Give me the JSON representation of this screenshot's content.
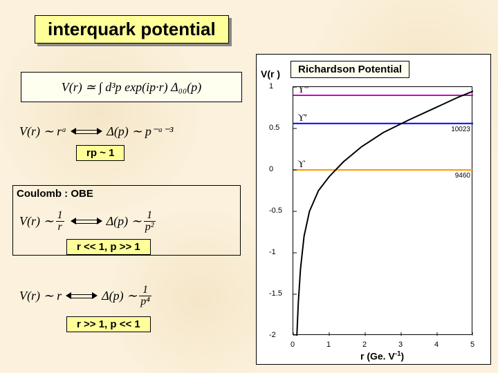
{
  "title": "interquark potential",
  "richardson_label": "Richardson Potential",
  "coulomb_label": "Coulomb : OBE",
  "formulas": {
    "integral": "V(r)  ≃  ∫ d³p exp(ip·r) Δ₀₀(p)",
    "scale": {
      "lhs": "V(r)  ∼  rᵃ",
      "rhs": "Δ(p)  ∼  p⁻ᵃ⁻³",
      "cond": "rp ~ 1"
    },
    "coulomb": {
      "lhs": "V(r)  ∼",
      "lfrac_n": "1",
      "lfrac_d": "r",
      "rhs": "Δ(p)  ∼",
      "rfrac_n": "1",
      "rfrac_d": "p²",
      "cond": "r << 1, p >> 1"
    },
    "linear": {
      "lhs": "V(r)  ∼  r",
      "rhs": "Δ(p)  ∼",
      "rfrac_n": "1",
      "rfrac_d": "p⁴",
      "cond": "r >> 1, p << 1"
    }
  },
  "cond_box_bg": "#ffff99",
  "chart": {
    "type": "line",
    "xlabel": "r (Ge. V⁻¹)",
    "ylabel": "V(r )",
    "xlim": [
      0,
      5
    ],
    "ylim": [
      -2,
      1
    ],
    "xticks": [
      0,
      1,
      2,
      3,
      4,
      5
    ],
    "yticks": [
      -2,
      -1.5,
      -1,
      -0.5,
      0,
      0.5,
      1
    ],
    "background_color": "#ffffff",
    "curve_color": "#000000",
    "curve_width": 2,
    "curve_points": [
      [
        0.1,
        -2.0
      ],
      [
        0.14,
        -1.6
      ],
      [
        0.2,
        -1.2
      ],
      [
        0.3,
        -0.8
      ],
      [
        0.45,
        -0.5
      ],
      [
        0.7,
        -0.25
      ],
      [
        1.0,
        -0.08
      ],
      [
        1.4,
        0.1
      ],
      [
        1.9,
        0.28
      ],
      [
        2.5,
        0.45
      ],
      [
        3.2,
        0.6
      ],
      [
        4.0,
        0.76
      ],
      [
        4.6,
        0.88
      ],
      [
        5.0,
        0.95
      ]
    ],
    "hlines": [
      {
        "y": 0.0,
        "color": "#ff9900",
        "width": 2,
        "label": "ϒ",
        "mass": "9460"
      },
      {
        "y": 0.56,
        "color": "#0000ff",
        "width": 2,
        "label": "ϒ′",
        "mass": "10023"
      },
      {
        "y": 0.9,
        "color": "#cc00cc",
        "width": 2,
        "label": "ϒ″",
        "mass": ""
      }
    ]
  }
}
